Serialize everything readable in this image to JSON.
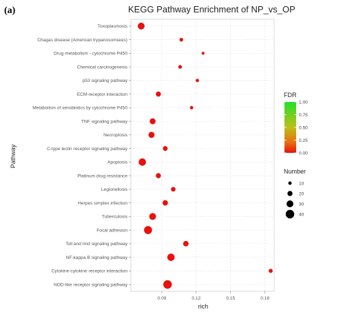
{
  "panel_label": "(a)",
  "chart_data": {
    "type": "scatter",
    "title": "KEGG Pathway Enrichment of NP_vs_OP",
    "xlabel": "rich",
    "ylabel": "Pathway",
    "xlim": [
      0.063,
      0.188
    ],
    "xticks": [
      0.09,
      0.12,
      0.15,
      0.18
    ],
    "xtick_labels": [
      "0.09",
      "0.12",
      "0.15",
      "0.18"
    ],
    "grid": true,
    "points": [
      {
        "pathway": "Toxoplasmosis",
        "rich": 0.072,
        "number": 30,
        "fdr": 0.0
      },
      {
        "pathway": "Chagas disease (American trypanosomiasis)",
        "rich": 0.107,
        "number": 12,
        "fdr": 0.02
      },
      {
        "pathway": "Drug metabolism - cytochrome P450",
        "rich": 0.126,
        "number": 8,
        "fdr": 0.05
      },
      {
        "pathway": "Chemical carcinogenesis",
        "rich": 0.106,
        "number": 12,
        "fdr": 0.02
      },
      {
        "pathway": "p53 signaling pathway",
        "rich": 0.121,
        "number": 10,
        "fdr": 0.03
      },
      {
        "pathway": "ECM-receptor interaction",
        "rich": 0.087,
        "number": 20,
        "fdr": 0.0
      },
      {
        "pathway": "Metabolism of xenobiotics by cytochrome P450",
        "rich": 0.116,
        "number": 10,
        "fdr": 0.03
      },
      {
        "pathway": "TNF signaling pathway",
        "rich": 0.082,
        "number": 25,
        "fdr": 0.0
      },
      {
        "pathway": "Necroptosis",
        "rich": 0.081,
        "number": 26,
        "fdr": 0.0
      },
      {
        "pathway": "C-type lectin receptor signaling pathway",
        "rich": 0.093,
        "number": 18,
        "fdr": 0.0
      },
      {
        "pathway": "Apoptosis",
        "rich": 0.073,
        "number": 33,
        "fdr": 0.0
      },
      {
        "pathway": "Platinum drug resistance",
        "rich": 0.087,
        "number": 20,
        "fdr": 0.0
      },
      {
        "pathway": "Legionellosis",
        "rich": 0.1,
        "number": 17,
        "fdr": 0.0
      },
      {
        "pathway": "Herpes simplex infection",
        "rich": 0.093,
        "number": 22,
        "fdr": 0.0
      },
      {
        "pathway": "Tuberculosis",
        "rich": 0.082,
        "number": 30,
        "fdr": 0.0
      },
      {
        "pathway": "Focal adhesion",
        "rich": 0.078,
        "number": 37,
        "fdr": 0.0
      },
      {
        "pathway": "Toll and Imd signaling pathway",
        "rich": 0.111,
        "number": 22,
        "fdr": 0.0
      },
      {
        "pathway": "NF-kappa B signaling pathway",
        "rich": 0.098,
        "number": 33,
        "fdr": 0.0
      },
      {
        "pathway": "Cytokine-cytokine receptor interaction",
        "rich": 0.185,
        "number": 14,
        "fdr": 0.01
      },
      {
        "pathway": "NOD-like receptor signaling pathway",
        "rich": 0.095,
        "number": 40,
        "fdr": 0.0
      }
    ],
    "color_legend": {
      "title": "FDR",
      "ticks": [
        "1.00",
        "0.75",
        "0.50",
        "0.25",
        "0.00"
      ],
      "tick_values": [
        1.0,
        0.75,
        0.5,
        0.25,
        0.0
      ],
      "low_color": "#e8120f",
      "high_color": "#22e02a"
    },
    "size_legend": {
      "title": "Number",
      "entries": [
        10,
        20,
        30,
        40
      ],
      "labels": [
        "10",
        "20",
        "30",
        "40"
      ]
    },
    "legend_position": "right"
  }
}
